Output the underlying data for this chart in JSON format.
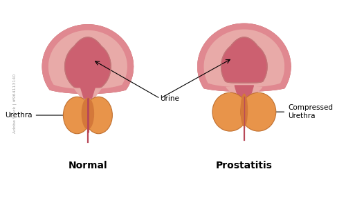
{
  "background_color": "#ffffff",
  "title_normal": "Normal",
  "title_prostatitis": "Prostatitis",
  "label_urethra": "Urethra",
  "label_urine": "Urine",
  "label_compressed": "Compressed\nUrethra",
  "watermark": "Adobe Stock | #964113140",
  "color_outer_bladder": "#e8aaa8",
  "color_outer_bladder_edge": "#c07878",
  "color_inner_bladder": "#cc6070",
  "color_inner_bladder_light": "#e08890",
  "color_bladder_wall": "#d98890",
  "color_prostate_outer": "#e8944a",
  "color_prostate_edge": "#c07030",
  "color_prostate_inner": "#d4783a",
  "color_urethra_tube": "#b84858",
  "color_outline": "#9a3848",
  "title_fontsize": 10,
  "label_fontsize": 7.5
}
